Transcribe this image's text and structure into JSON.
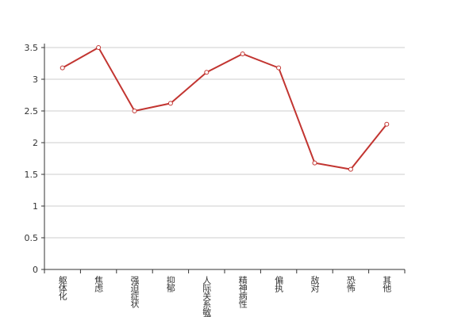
{
  "chart_data": {
    "type": "line",
    "categories": [
      "躯体化",
      "焦虑",
      "强迫症状",
      "抑郁",
      "人际关系敏感",
      "精神病性",
      "偏执",
      "敌对",
      "恐怖",
      "其他"
    ],
    "series": [
      {
        "color": "#c23531",
        "values": [
          3.18,
          3.5,
          2.5,
          2.62,
          3.11,
          3.4,
          3.18,
          1.68,
          1.58,
          2.29
        ]
      }
    ],
    "ylim": [
      0,
      3.5
    ],
    "yticks": [
      0,
      0.5,
      1,
      1.5,
      2,
      2.5,
      3,
      3.5
    ],
    "grid": true
  }
}
